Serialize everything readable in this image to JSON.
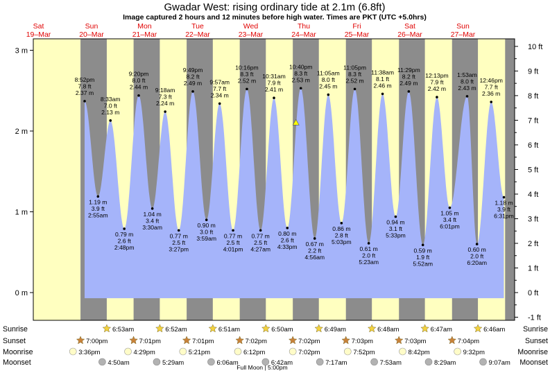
{
  "title": "Gwadar West: rising  ordinary tide at 2.1m (6.8ft)",
  "subtitle": "Image captured 2 hours and 12 minutes before high water. Times are PKT (UTC +5.0hrs)",
  "colors": {
    "day": "#ffffc0",
    "night": "#8c8c8c",
    "water": "#a5b4fa",
    "title_day": "#e00000",
    "marker": "#ffff00",
    "sun_icon": "#f3d23f",
    "sunset_icon": "#c8823a",
    "moonrise_icon": "#fffcc8",
    "moonset_icon": "#b2b2b2"
  },
  "chart_data": {
    "type": "area",
    "ylabel_left": "m",
    "ylabel_right": "ft",
    "y_ticks_m": [
      "0 m",
      "1 m",
      "2 m",
      "3 m"
    ],
    "y_ticks_ft": [
      "-1 ft",
      "0 ft",
      "1 ft",
      "2 ft",
      "3 ft",
      "4 ft",
      "5 ft",
      "6 ft",
      "7 ft",
      "8 ft",
      "9 ft",
      "10 ft"
    ],
    "ylim_m": [
      -0.34,
      3.12
    ],
    "days": [
      {
        "dow": "Sat",
        "date": "19–Mar"
      },
      {
        "dow": "Sun",
        "date": "20–Mar"
      },
      {
        "dow": "Mon",
        "date": "21–Mar"
      },
      {
        "dow": "Tue",
        "date": "22–Mar"
      },
      {
        "dow": "Wed",
        "date": "23–Mar"
      },
      {
        "dow": "Thu",
        "date": "24–Mar"
      },
      {
        "dow": "Fri",
        "date": "25–Mar"
      },
      {
        "dow": "Sat",
        "date": "26–Mar"
      },
      {
        "dow": "Sun",
        "date": "27–Mar"
      }
    ],
    "extremes": [
      {
        "type": "high",
        "day": 0,
        "time": "8:52 pm",
        "ft": "7.8 ft",
        "m": "2.37 m",
        "value": 2.37
      },
      {
        "type": "low",
        "day": 1,
        "time": "2:55 am",
        "ft": "3.9 ft",
        "m": "1.19 m",
        "value": 1.19
      },
      {
        "type": "high",
        "day": 1,
        "time": "8:33 am",
        "ft": "7.0 ft",
        "m": "2.13 m",
        "value": 2.13
      },
      {
        "type": "low",
        "day": 1,
        "time": "2:48 pm",
        "ft": "2.6 ft",
        "m": "0.79 m",
        "value": 0.79
      },
      {
        "type": "high",
        "day": 1,
        "time": "9:20 pm",
        "ft": "8.0 ft",
        "m": "2.44 m",
        "value": 2.44
      },
      {
        "type": "low",
        "day": 2,
        "time": "3:30 am",
        "ft": "3.4 ft",
        "m": "1.04 m",
        "value": 1.04
      },
      {
        "type": "high",
        "day": 2,
        "time": "9:18 am",
        "ft": "7.3 ft",
        "m": "2.24 m",
        "value": 2.24
      },
      {
        "type": "low",
        "day": 2,
        "time": "3:27 pm",
        "ft": "2.5 ft",
        "m": "0.77 m",
        "value": 0.77
      },
      {
        "type": "high",
        "day": 2,
        "time": "9:49 pm",
        "ft": "8.2 ft",
        "m": "2.49 m",
        "value": 2.49
      },
      {
        "type": "low",
        "day": 3,
        "time": "3:59 am",
        "ft": "3.0 ft",
        "m": "0.90 m",
        "value": 0.9
      },
      {
        "type": "high",
        "day": 3,
        "time": "9:57 am",
        "ft": "7.7 ft",
        "m": "2.34 m",
        "value": 2.34
      },
      {
        "type": "low",
        "day": 3,
        "time": "4:01 pm",
        "ft": "2.5 ft",
        "m": "0.77 m",
        "value": 0.77
      },
      {
        "type": "high",
        "day": 3,
        "time": "10:16 pm",
        "ft": "8.3 ft",
        "m": "2.52 m",
        "value": 2.52
      },
      {
        "type": "low",
        "day": 4,
        "time": "4:27 am",
        "ft": "2.5 ft",
        "m": "0.77 m",
        "value": 0.77
      },
      {
        "type": "high",
        "day": 4,
        "time": "10:31 am",
        "ft": "7.9 ft",
        "m": "2.41 m",
        "value": 2.41
      },
      {
        "type": "low",
        "day": 4,
        "time": "4:33 pm",
        "ft": "2.6 ft",
        "m": "0.80 m",
        "value": 0.8
      },
      {
        "type": "high",
        "day": 4,
        "time": "10:40 pm",
        "ft": "8.3 ft",
        "m": "2.53 m",
        "value": 2.53
      },
      {
        "type": "low",
        "day": 5,
        "time": "4:56 am",
        "ft": "2.2 ft",
        "m": "0.67 m",
        "value": 0.67
      },
      {
        "type": "high",
        "day": 5,
        "time": "11:05 am",
        "ft": "8.0 ft",
        "m": "2.45 m",
        "value": 2.45
      },
      {
        "type": "low",
        "day": 5,
        "time": "5:03 pm",
        "ft": "2.8 ft",
        "m": "0.86 m",
        "value": 0.86
      },
      {
        "type": "high",
        "day": 5,
        "time": "11:05 pm",
        "ft": "8.3 ft",
        "m": "2.52 m",
        "value": 2.52
      },
      {
        "type": "low",
        "day": 6,
        "time": "5:23 am",
        "ft": "2.0 ft",
        "m": "0.61 m",
        "value": 0.61
      },
      {
        "type": "high",
        "day": 6,
        "time": "11:38 am",
        "ft": "8.1 ft",
        "m": "2.46 m",
        "value": 2.46
      },
      {
        "type": "low",
        "day": 6,
        "time": "5:33 pm",
        "ft": "3.1 ft",
        "m": "0.94 m",
        "value": 0.94
      },
      {
        "type": "high",
        "day": 6,
        "time": "11:29 pm",
        "ft": "8.2 ft",
        "m": "2.49 m",
        "value": 2.49
      },
      {
        "type": "low",
        "day": 7,
        "time": "5:52 am",
        "ft": "1.9 ft",
        "m": "0.59 m",
        "value": 0.59
      },
      {
        "type": "high",
        "day": 7,
        "time": "12:13 pm",
        "ft": "7.9 ft",
        "m": "2.42 m",
        "value": 2.42
      },
      {
        "type": "low",
        "day": 7,
        "time": "6:01 pm",
        "ft": "3.4 ft",
        "m": "1.05 m",
        "value": 1.05
      },
      {
        "type": "high",
        "day": 8,
        "time": "1:53 am",
        "ft": "8.0 ft",
        "m": "2.43 m",
        "value": 2.43
      },
      {
        "type": "low",
        "day": 8,
        "time": "6:20 am",
        "ft": "2.0 ft",
        "m": "0.60 m",
        "value": 0.6
      },
      {
        "type": "high",
        "day": 8,
        "time": "12:46 pm",
        "ft": "7.7 ft",
        "m": "2.36 m",
        "value": 2.36
      },
      {
        "type": "low",
        "day": 8,
        "time": "6:31 pm",
        "ft": "3.9 ft",
        "m": "1.18 m",
        "value": 1.18
      }
    ],
    "current": {
      "label": "rising",
      "value_m": 2.1,
      "value_ft": 6.8
    },
    "sun": {
      "rise": [
        "6:53am",
        "6:52am",
        "6:51am",
        "6:50am",
        "6:49am",
        "6:48am",
        "6:47am",
        "6:46am"
      ],
      "set": [
        "7:00pm",
        "7:01pm",
        "7:01pm",
        "7:02pm",
        "7:02pm",
        "7:03pm",
        "7:03pm",
        "7:04pm"
      ]
    },
    "moon": {
      "rise": [
        "3:36pm",
        "4:29pm",
        "5:21pm",
        "6:12pm",
        "7:02pm",
        "7:52pm",
        "8:42pm",
        "9:32pm"
      ],
      "set": [
        "4:50am",
        "5:29am",
        "6:06am",
        "6:42am",
        "7:17am",
        "7:53am",
        "8:29am",
        "9:07am"
      ]
    },
    "row_labels": {
      "sunrise": "Sunrise",
      "sunset": "Sunset",
      "moonrise": "Moonrise",
      "moonset": "Moonset"
    },
    "moon_phase": "Full Moon | 5:00pm"
  }
}
